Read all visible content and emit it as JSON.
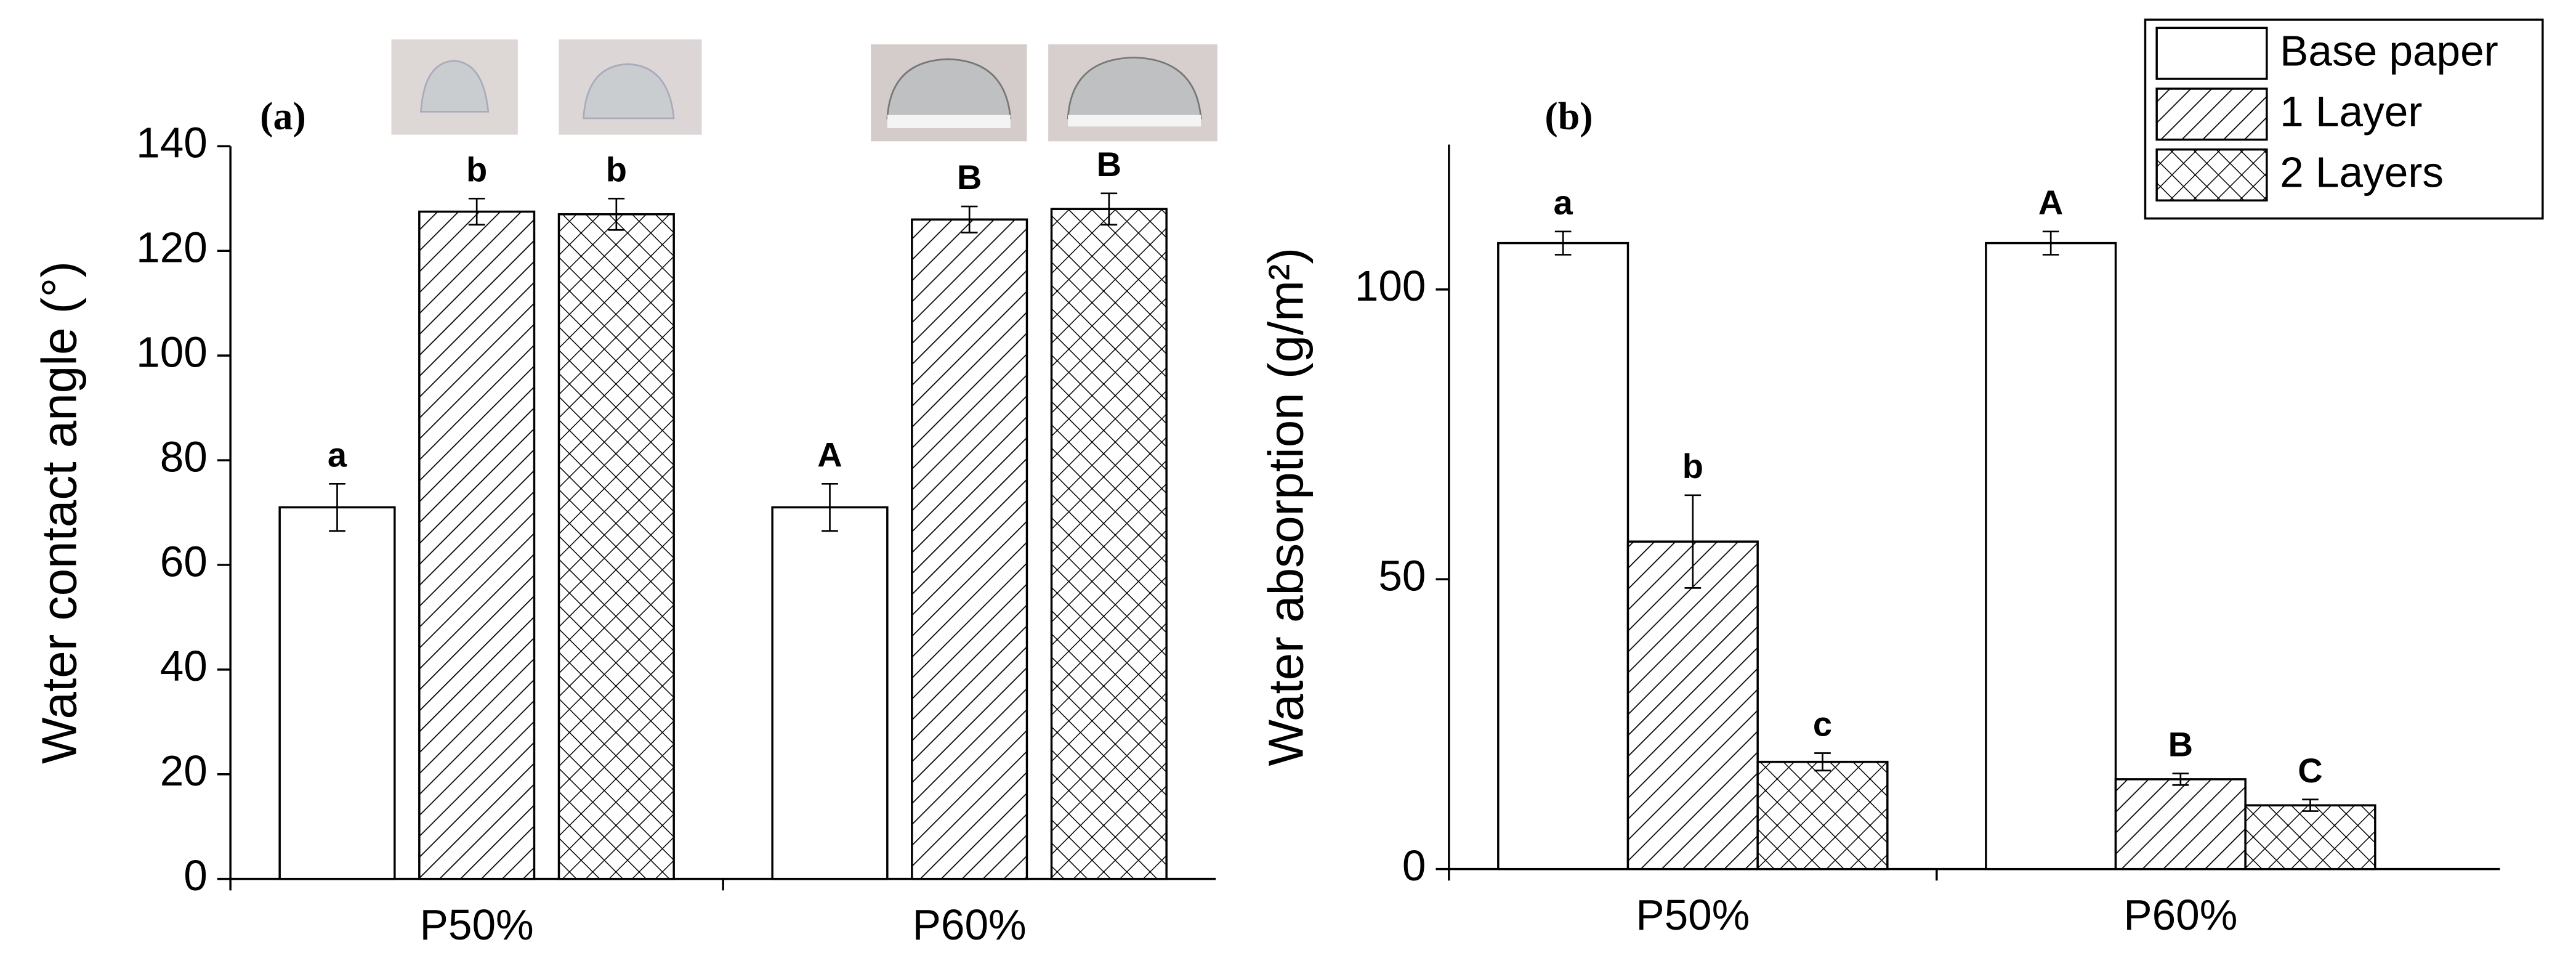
{
  "chart_data": [
    {
      "type": "bar",
      "panel": "(a)",
      "y_label": "Water contact angle (°)",
      "categories": [
        "P50%",
        "P60%"
      ],
      "series": [
        {
          "name": "Base paper",
          "color": "#000000",
          "hatch": "none",
          "values": [
            71,
            71
          ],
          "errors": [
            4.5,
            4.5
          ],
          "labels": [
            "a",
            "A"
          ]
        },
        {
          "name": "1 Layer",
          "color": "#000000",
          "hatch": "diagonal",
          "values": [
            127.5,
            126
          ],
          "errors": [
            2.5,
            2.5
          ],
          "labels": [
            "b",
            "B"
          ]
        },
        {
          "name": "2 Layers",
          "color": "#000000",
          "hatch": "cross",
          "values": [
            127,
            128
          ],
          "errors": [
            3,
            3
          ],
          "labels": [
            "b",
            "B"
          ]
        }
      ],
      "ylim": [
        0,
        140
      ],
      "yticks": [
        0,
        20,
        40,
        60,
        80,
        100,
        120,
        140
      ]
    },
    {
      "type": "bar",
      "panel": "(b)",
      "y_label": "Water absorption (g/m²)",
      "categories": [
        "P50%",
        "P60%"
      ],
      "series": [
        {
          "name": "Base paper",
          "color": "#000000",
          "hatch": "none",
          "values": [
            108,
            108
          ],
          "errors": [
            2,
            2
          ],
          "labels": [
            "a",
            "A"
          ]
        },
        {
          "name": "1 Layer",
          "color": "#000000",
          "hatch": "diagonal",
          "values": [
            56.5,
            15.5
          ],
          "errors": [
            8,
            1
          ],
          "labels": [
            "b",
            "B"
          ]
        },
        {
          "name": "2 Layers",
          "color": "#000000",
          "hatch": "cross",
          "values": [
            18.5,
            11
          ],
          "errors": [
            1.5,
            1
          ],
          "labels": [
            "c",
            "C"
          ]
        }
      ],
      "ylim": [
        0,
        125
      ],
      "yticks": [
        0,
        50,
        100
      ],
      "legend": "upper right"
    }
  ]
}
